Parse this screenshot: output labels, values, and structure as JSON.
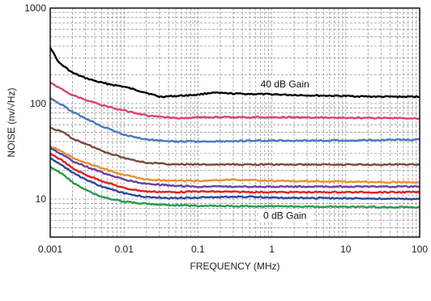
{
  "chart_data": {
    "type": "line",
    "title": "",
    "xlabel": "FREQUENCY (MHz)",
    "ylabel": "NOISE (nv/√Hz)",
    "x_scale": "log",
    "y_scale": "log",
    "xlim": [
      0.001,
      100
    ],
    "ylim": [
      4,
      1000
    ],
    "grid": true,
    "x_ticks": [
      0.001,
      0.01,
      0.1,
      1,
      10,
      100
    ],
    "x_tick_labels": [
      "0.001",
      "0.01",
      "0.1",
      "1",
      "10",
      "100"
    ],
    "y_ticks": [
      10,
      100,
      1000
    ],
    "y_tick_labels": [
      "10",
      "100",
      "1000"
    ],
    "annotations": [
      {
        "text": "40 dB Gain",
        "x": 1.5,
        "y": 150
      },
      {
        "text": "0 dB Gain",
        "x": 1.5,
        "y": 6.3
      }
    ],
    "series": [
      {
        "color": "#000000",
        "points": [
          [
            0.001,
            390
          ],
          [
            0.0013,
            270
          ],
          [
            0.002,
            210
          ],
          [
            0.003,
            185
          ],
          [
            0.005,
            165
          ],
          [
            0.01,
            150
          ],
          [
            0.02,
            130
          ],
          [
            0.03,
            118
          ],
          [
            0.05,
            120
          ],
          [
            0.1,
            124
          ],
          [
            0.15,
            130
          ],
          [
            0.3,
            127
          ],
          [
            1,
            125
          ],
          [
            3,
            122
          ],
          [
            10,
            120
          ],
          [
            30,
            118
          ],
          [
            100,
            118
          ]
        ]
      },
      {
        "color": "#e0407a",
        "points": [
          [
            0.001,
            165
          ],
          [
            0.0015,
            140
          ],
          [
            0.002,
            122
          ],
          [
            0.003,
            110
          ],
          [
            0.005,
            96
          ],
          [
            0.01,
            85
          ],
          [
            0.02,
            75
          ],
          [
            0.05,
            70
          ],
          [
            0.1,
            72
          ],
          [
            0.3,
            72
          ],
          [
            1,
            72
          ],
          [
            10,
            71
          ],
          [
            100,
            70
          ]
        ]
      },
      {
        "color": "#4a78c0",
        "points": [
          [
            0.001,
            115
          ],
          [
            0.0015,
            95
          ],
          [
            0.002,
            82
          ],
          [
            0.003,
            70
          ],
          [
            0.005,
            58
          ],
          [
            0.01,
            47
          ],
          [
            0.02,
            42
          ],
          [
            0.05,
            40
          ],
          [
            0.1,
            40
          ],
          [
            1,
            41
          ],
          [
            10,
            41
          ],
          [
            100,
            42
          ]
        ]
      },
      {
        "color": "#7a4a3a",
        "points": [
          [
            0.001,
            56
          ],
          [
            0.0015,
            50
          ],
          [
            0.002,
            43
          ],
          [
            0.003,
            38
          ],
          [
            0.005,
            32
          ],
          [
            0.01,
            27
          ],
          [
            0.02,
            24
          ],
          [
            0.05,
            23
          ],
          [
            0.1,
            23
          ],
          [
            1,
            23
          ],
          [
            10,
            23
          ],
          [
            100,
            23
          ]
        ]
      },
      {
        "color": "#e8902a",
        "points": [
          [
            0.001,
            36
          ],
          [
            0.0015,
            31
          ],
          [
            0.002,
            27
          ],
          [
            0.003,
            24
          ],
          [
            0.005,
            21
          ],
          [
            0.01,
            18
          ],
          [
            0.02,
            16
          ],
          [
            0.05,
            15.5
          ],
          [
            0.1,
            15.5
          ],
          [
            0.3,
            16
          ],
          [
            1,
            15.5
          ],
          [
            10,
            15.2
          ],
          [
            100,
            15
          ]
        ]
      },
      {
        "color": "#6a40a0",
        "points": [
          [
            0.001,
            34
          ],
          [
            0.0015,
            29
          ],
          [
            0.002,
            25
          ],
          [
            0.003,
            22
          ],
          [
            0.005,
            19
          ],
          [
            0.01,
            16
          ],
          [
            0.02,
            14.5
          ],
          [
            0.05,
            13.8
          ],
          [
            0.1,
            13.5
          ],
          [
            1,
            13.5
          ],
          [
            10,
            13.5
          ],
          [
            100,
            13.5
          ]
        ]
      },
      {
        "color": "#e02020",
        "points": [
          [
            0.001,
            30
          ],
          [
            0.0015,
            25
          ],
          [
            0.002,
            21
          ],
          [
            0.003,
            18
          ],
          [
            0.005,
            15.5
          ],
          [
            0.01,
            13
          ],
          [
            0.02,
            12
          ],
          [
            0.05,
            11.8
          ],
          [
            0.1,
            12
          ],
          [
            1,
            11.8
          ],
          [
            10,
            11.8
          ],
          [
            100,
            11.8
          ]
        ]
      },
      {
        "color": "#2a4aa0",
        "points": [
          [
            0.001,
            27
          ],
          [
            0.0015,
            22
          ],
          [
            0.002,
            19
          ],
          [
            0.003,
            16
          ],
          [
            0.005,
            13.5
          ],
          [
            0.01,
            11.5
          ],
          [
            0.02,
            10.5
          ],
          [
            0.05,
            10.2
          ],
          [
            0.1,
            10.4
          ],
          [
            0.5,
            10.6
          ],
          [
            1,
            10.3
          ],
          [
            10,
            10.2
          ],
          [
            100,
            10
          ]
        ]
      },
      {
        "color": "#2a9a4a",
        "points": [
          [
            0.001,
            22
          ],
          [
            0.0015,
            18
          ],
          [
            0.002,
            15
          ],
          [
            0.003,
            12.5
          ],
          [
            0.005,
            10.5
          ],
          [
            0.01,
            9.4
          ],
          [
            0.02,
            8.9
          ],
          [
            0.05,
            8.6
          ],
          [
            0.1,
            8.5
          ],
          [
            1,
            8.4
          ],
          [
            10,
            8.3
          ],
          [
            100,
            8.2
          ]
        ]
      }
    ]
  }
}
